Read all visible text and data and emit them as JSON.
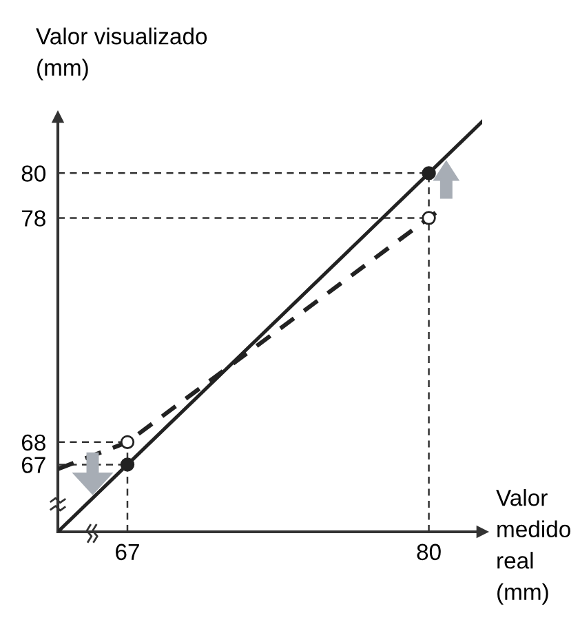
{
  "chart_data": {
    "type": "line",
    "xlabel": "Valor\nmedido\nreal\n(mm)",
    "ylabel": "Valor visualizado\n(mm)",
    "xlim": [
      64,
      82.3
    ],
    "ylim": [
      64,
      82.5
    ],
    "xticks": [
      67,
      80
    ],
    "yticks": [
      67,
      68,
      78,
      80
    ],
    "grid": false,
    "legend": false,
    "series": [
      {
        "x": [
          64,
          67,
          80,
          82.3
        ],
        "values": [
          64,
          67,
          80,
          82.3
        ],
        "color": "#222222",
        "line_style": "solid",
        "marker": "none"
      },
      {
        "type": "scatter",
        "x": [
          67,
          80
        ],
        "values": [
          67,
          80
        ],
        "color": "#222222",
        "marker": "circle"
      },
      {
        "x": [
          64,
          67,
          80,
          80.5
        ],
        "values": [
          66.8,
          68,
          78,
          78.4
        ],
        "color": "#222222",
        "line_style": "dashed",
        "marker": "none"
      },
      {
        "type": "scatter",
        "x": [
          67,
          80
        ],
        "values": [
          68,
          78
        ],
        "color": "#ffffff",
        "marker": "circle"
      },
      {
        "x": [
          67,
          67
        ],
        "values": [
          64,
          68
        ],
        "color": "#333333",
        "line_style": "dashed"
      },
      {
        "x": [
          80,
          80
        ],
        "values": [
          64,
          80
        ],
        "color": "#333333",
        "line_style": "dashed"
      },
      {
        "x": [
          64,
          67
        ],
        "values": [
          67,
          67
        ],
        "color": "#333333",
        "line_style": "dashed"
      },
      {
        "x": [
          64,
          67
        ],
        "values": [
          68,
          68
        ],
        "color": "#333333",
        "line_style": "dashed"
      },
      {
        "x": [
          64,
          80
        ],
        "values": [
          78,
          78
        ],
        "color": "#333333",
        "line_style": "dashed"
      },
      {
        "x": [
          64,
          80
        ],
        "values": [
          80,
          80
        ],
        "color": "#333333",
        "line_style": "dashed"
      }
    ]
  }
}
